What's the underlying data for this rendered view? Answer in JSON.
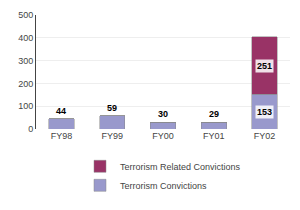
{
  "chart_data": {
    "type": "bar",
    "stacked": true,
    "categories": [
      "FY98",
      "FY99",
      "FY00",
      "FY01",
      "FY02"
    ],
    "series": [
      {
        "name": "Terrorism Convictions",
        "color": "#9999cc",
        "values": [
          44,
          59,
          30,
          29,
          153
        ],
        "value_labels": [
          "44",
          "59",
          "30",
          "29",
          "153"
        ]
      },
      {
        "name": "Terrorism Related Convictions",
        "color": "#993366",
        "values": [
          0,
          0,
          0,
          0,
          251
        ],
        "value_labels": [
          null,
          null,
          null,
          null,
          "251"
        ]
      }
    ],
    "ylim": [
      0,
      500
    ],
    "yticks": [
      0,
      100,
      200,
      300,
      400,
      500
    ],
    "grid": true,
    "legend": "bottom",
    "data_labels": true
  }
}
